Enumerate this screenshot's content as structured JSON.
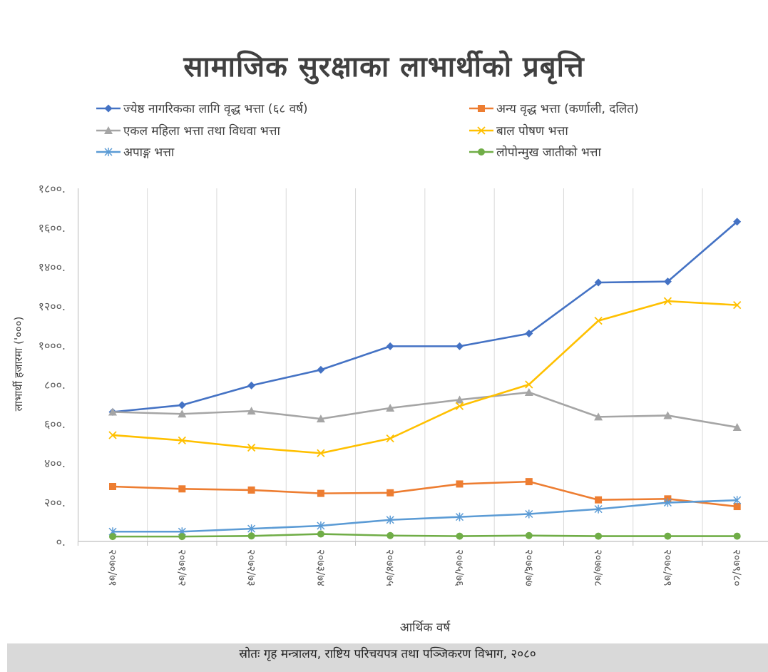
{
  "chart_data": {
    "type": "line",
    "title": "सामाजिक सुरक्षाका लाभार्थीको प्रबृत्ति",
    "xlabel": "आर्थिक वर्ष",
    "ylabel": "लाभार्थी हजारमा ('०००)",
    "ylim": [
      0,
      1800
    ],
    "y_ticks": [
      0,
      200,
      400,
      600,
      800,
      1000,
      1200,
      1400,
      1600,
      1800
    ],
    "y_tick_labels": [
      "०.",
      "२००.",
      "४००.",
      "६००.",
      "८००.",
      "१०००.",
      "१२००.",
      "१४००.",
      "१६००.",
      "१८००."
    ],
    "categories": [
      "२०७०/७१",
      "२०७१/७२",
      "२०७२/७३",
      "२०७३/७४",
      "२०७४/७५",
      "२०७५/७६",
      "२०७६/७७",
      "२०७७/७८",
      "२०७८/७९",
      "२०७९/८०"
    ],
    "grid": "vertical",
    "legend_position": "top",
    "series": [
      {
        "name": "ज्येष्ठ नागरिकका लागि वृद्ध भत्ता (६८ वर्ष)",
        "color": "#4472C4",
        "marker": "diamond",
        "values": [
          660,
          695,
          795,
          875,
          995,
          995,
          1060,
          1320,
          1325,
          1630
        ]
      },
      {
        "name": "अन्य वृद्ध भत्ता (कर्णाली, दलित)",
        "color": "#ED7D31",
        "marker": "square",
        "values": [
          280,
          268,
          262,
          245,
          248,
          293,
          305,
          212,
          217,
          178
        ]
      },
      {
        "name": "एकल महिला भत्ता तथा विधवा भत्ता",
        "color": "#A5A5A5",
        "marker": "triangle",
        "values": [
          660,
          650,
          665,
          625,
          680,
          722,
          760,
          635,
          642,
          582
        ]
      },
      {
        "name": "बाल  पोषण भत्ता",
        "color": "#FFC000",
        "marker": "x",
        "values": [
          542,
          515,
          478,
          450,
          525,
          690,
          800,
          1125,
          1225,
          1205
        ]
      },
      {
        "name": "अपाङ्ग भत्ता",
        "color": "#5B9BD5",
        "marker": "asterisk",
        "values": [
          50,
          50,
          65,
          80,
          110,
          125,
          140,
          165,
          198,
          210
        ]
      },
      {
        "name": "लोपोन्मुख जातीको भत्ता",
        "color": "#70AD47",
        "marker": "circle",
        "values": [
          25,
          25,
          28,
          38,
          30,
          27,
          30,
          27,
          27,
          27
        ]
      }
    ]
  },
  "source": "स्रोतः गृह मन्त्रालय, राष्टिय परिचयपत्र तथा पञ्जिकरण विभाग, २०८०"
}
